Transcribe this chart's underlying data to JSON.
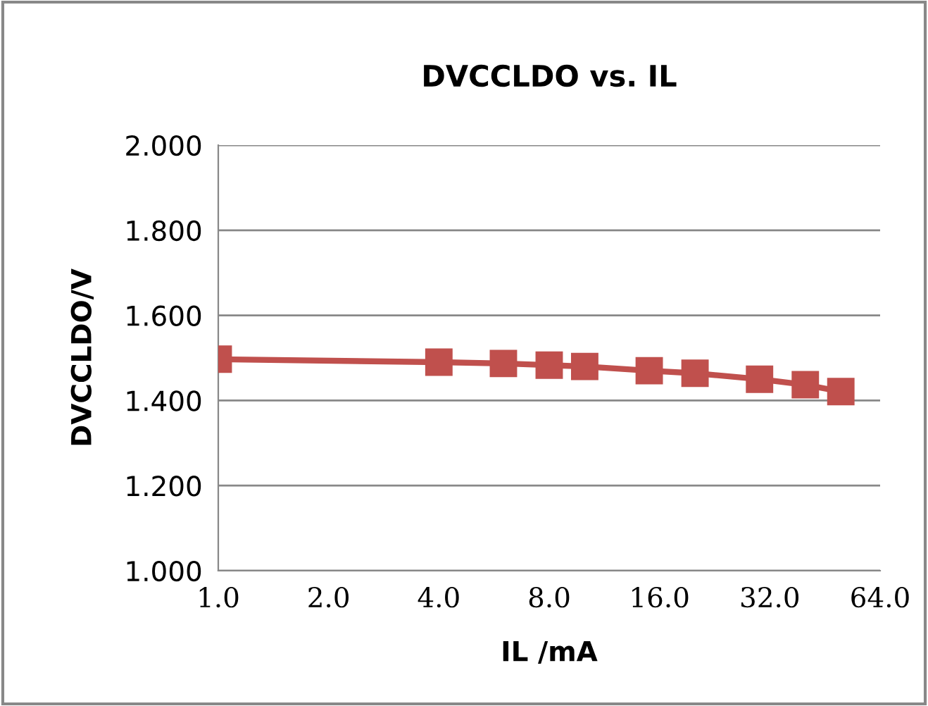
{
  "chart_data": {
    "type": "line",
    "title": "DVCCLDO vs. IL",
    "xlabel": "IL /mA",
    "ylabel": "DVCCLDO/V",
    "x": [
      1,
      4,
      6,
      8,
      10,
      15,
      20,
      30,
      40,
      50
    ],
    "series": [
      {
        "color": "#c0504d",
        "values": [
          1.497,
          1.49,
          1.487,
          1.483,
          1.48,
          1.47,
          1.464,
          1.45,
          1.437,
          1.421
        ]
      }
    ],
    "log": "x",
    "xlim": [
      1,
      64
    ],
    "xticks": [
      {
        "value": 1,
        "label": "1.0"
      },
      {
        "value": 2,
        "label": "2.0"
      },
      {
        "value": 4,
        "label": "4.0"
      },
      {
        "value": 8,
        "label": "8.0"
      },
      {
        "value": 16,
        "label": "16.0"
      },
      {
        "value": 32,
        "label": "32.0"
      },
      {
        "value": 64,
        "label": "64.0"
      }
    ],
    "ylim": [
      1.0,
      2.0
    ],
    "yticks": [
      {
        "value": 1.0,
        "label": "1.000"
      },
      {
        "value": 1.2,
        "label": "1.200"
      },
      {
        "value": 1.4,
        "label": "1.400"
      },
      {
        "value": 1.6,
        "label": "1.600"
      },
      {
        "value": 1.8,
        "label": "1.800"
      },
      {
        "value": 2.0,
        "label": "2.000"
      }
    ],
    "grid": "y",
    "marker": "square",
    "line_style": "solid"
  }
}
